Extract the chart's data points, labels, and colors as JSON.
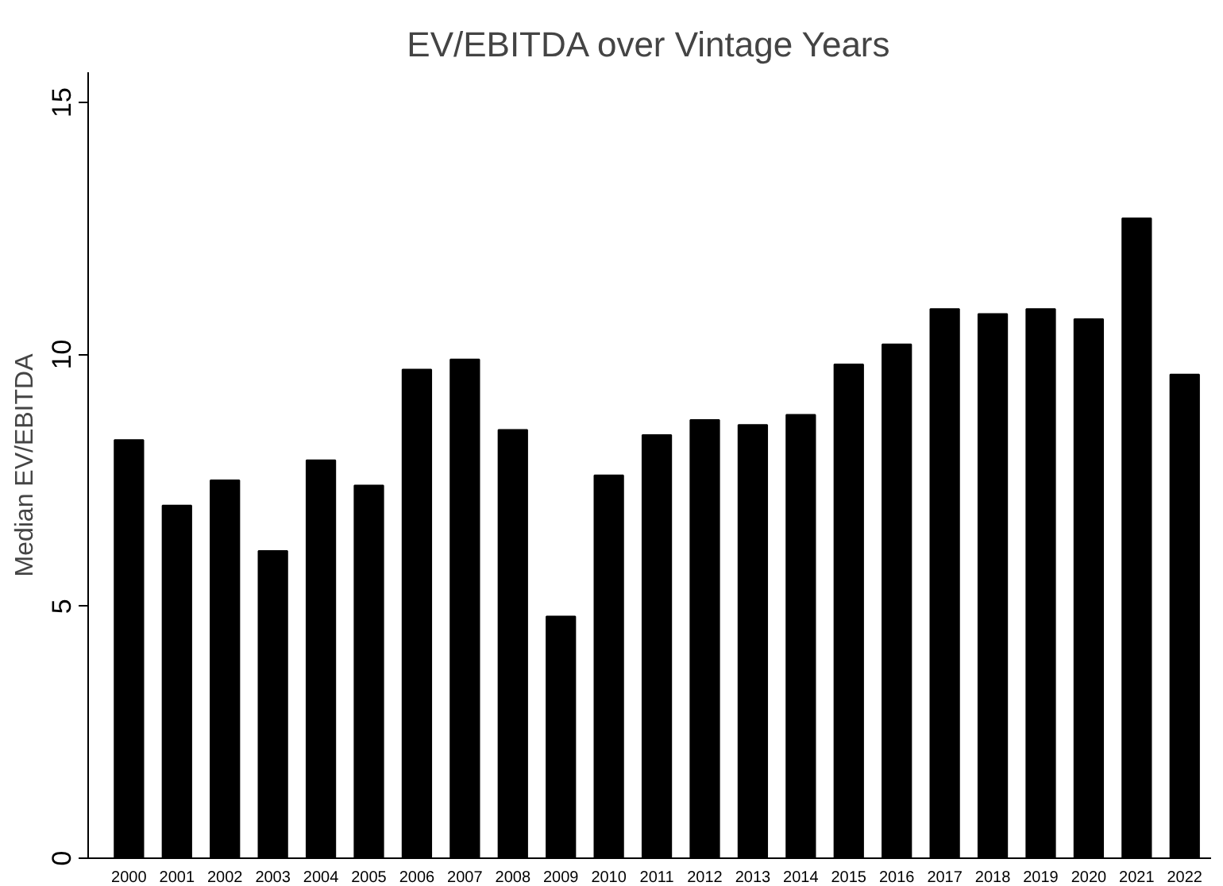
{
  "chart_data": {
    "type": "bar",
    "title": "EV/EBITDA over Vintage Years",
    "ylabel": "Median EV/EBITDA",
    "categories": [
      "2000",
      "2001",
      "2002",
      "2003",
      "2004",
      "2005",
      "2006",
      "2007",
      "2008",
      "2009",
      "2010",
      "2011",
      "2012",
      "2013",
      "2014",
      "2015",
      "2016",
      "2017",
      "2018",
      "2019",
      "2020",
      "2021",
      "2022"
    ],
    "values": [
      8.3,
      7.0,
      7.5,
      6.1,
      7.9,
      7.4,
      9.7,
      9.9,
      8.5,
      4.8,
      7.6,
      8.4,
      8.7,
      8.6,
      8.8,
      9.8,
      10.2,
      10.9,
      10.8,
      10.9,
      10.7,
      12.7,
      9.6
    ],
    "color": "#000000",
    "ylim": [
      0,
      15.6
    ],
    "yticks": [
      0,
      5,
      10,
      15
    ],
    "grid": false
  }
}
